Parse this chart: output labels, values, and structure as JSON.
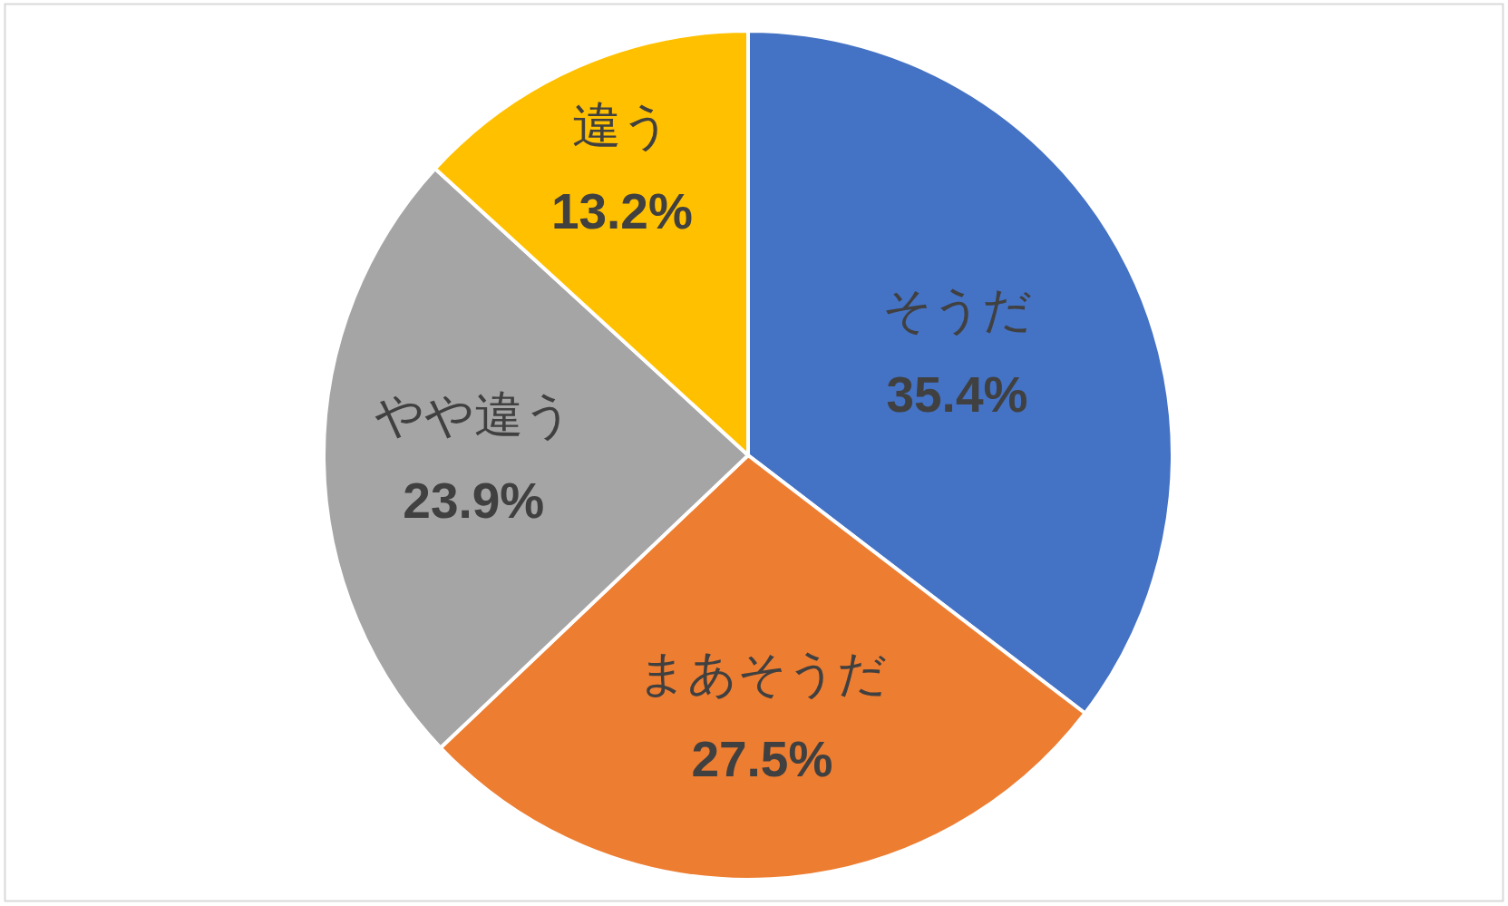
{
  "chart_data": {
    "type": "pie",
    "categories": [
      "そうだ",
      "まあそうだ",
      "やや違う",
      "違う"
    ],
    "values": [
      35.4,
      27.5,
      23.9,
      13.2
    ],
    "colors": [
      "#4472c4",
      "#ed7d31",
      "#a5a5a5",
      "#ffc000"
    ],
    "value_labels": [
      "35.4%",
      "27.5%",
      "23.9%",
      "13.2%"
    ]
  }
}
